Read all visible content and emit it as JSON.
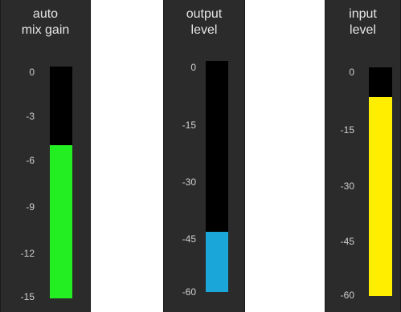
{
  "meters": [
    {
      "id": "auto",
      "title_lines": [
        "auto",
        "mix gain"
      ],
      "ticks": [
        "0",
        "-3",
        "-6",
        "-9",
        "-12",
        "-15"
      ],
      "level": 0.66,
      "color": "#22ee22"
    },
    {
      "id": "output",
      "title_lines": [
        "output",
        "level"
      ],
      "ticks": [
        "0",
        "-15",
        "-30",
        "-45",
        "-60"
      ],
      "level": 0.26,
      "color": "#1aa6d8"
    },
    {
      "id": "input",
      "title_lines": [
        "input",
        "level"
      ],
      "ticks": [
        "0",
        "-15",
        "-30",
        "-45",
        "-60"
      ],
      "level": 0.87,
      "color": "#ffee00"
    }
  ]
}
